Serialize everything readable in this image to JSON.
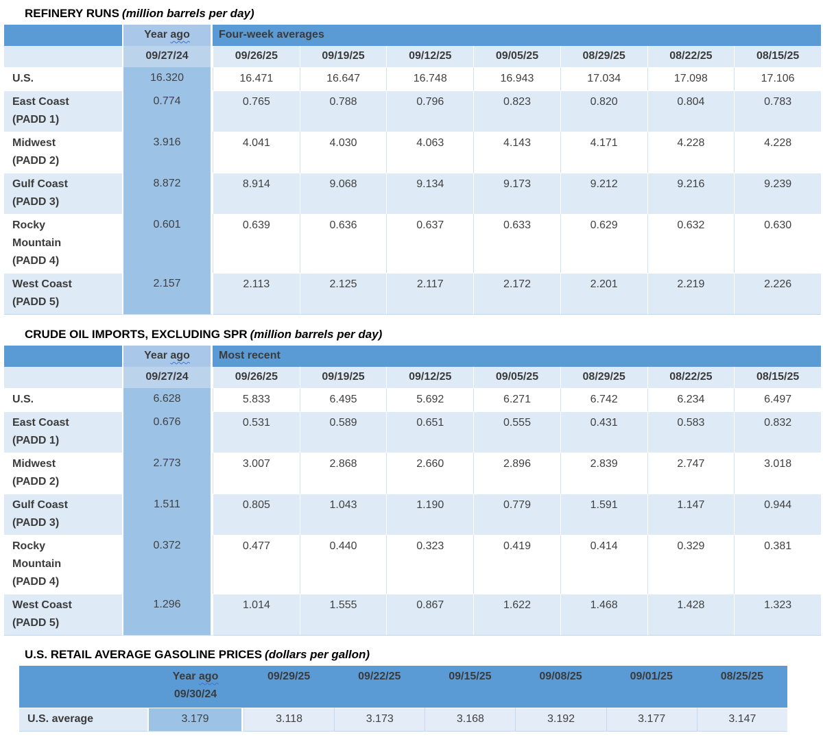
{
  "colors": {
    "header_blue": "#5B9BD5",
    "year_ago_header_blue": "#A9C8E9",
    "year_ago_column_blue": "#9CC3E6",
    "row_tint_blue": "#DEEAF6",
    "flat_value_tint": "#E4EDF7",
    "text_dark": "#404040",
    "squiggle_blue": "#4472C4"
  },
  "tables": [
    {
      "name": "refinery-runs",
      "style": "grouped",
      "title": "REFINERY RUNS",
      "unit": "(million barrels per day)",
      "header": {
        "year_ago_label": "Year ago",
        "period_label": "Four-week averages",
        "year_ago_date": "09/27/24",
        "dates": [
          "09/26/25",
          "09/19/25",
          "09/12/25",
          "09/05/25",
          "08/29/25",
          "08/22/25",
          "08/15/25"
        ]
      },
      "rows": [
        {
          "label": "U.S.",
          "label_lines": [
            "U.S."
          ],
          "year_ago": "16.320",
          "values": [
            "16.471",
            "16.647",
            "16.748",
            "16.943",
            "17.034",
            "17.098",
            "17.106"
          ]
        },
        {
          "label": "East Coast (PADD 1)",
          "label_lines": [
            "East Coast",
            "(PADD 1)"
          ],
          "year_ago": "0.774",
          "values": [
            "0.765",
            "0.788",
            "0.796",
            "0.823",
            "0.820",
            "0.804",
            "0.783"
          ]
        },
        {
          "label": "Midwest (PADD 2)",
          "label_lines": [
            "Midwest",
            "(PADD 2)"
          ],
          "year_ago": "3.916",
          "values": [
            "4.041",
            "4.030",
            "4.063",
            "4.143",
            "4.171",
            "4.228",
            "4.228"
          ]
        },
        {
          "label": "Gulf Coast (PADD 3)",
          "label_lines": [
            "Gulf Coast",
            "(PADD 3)"
          ],
          "year_ago": "8.872",
          "values": [
            "8.914",
            "9.068",
            "9.134",
            "9.173",
            "9.212",
            "9.216",
            "9.239"
          ]
        },
        {
          "label": "Rocky Mountain (PADD 4)",
          "label_lines": [
            "Rocky",
            "Mountain",
            "(PADD 4)"
          ],
          "year_ago": "0.601",
          "values": [
            "0.639",
            "0.636",
            "0.637",
            "0.633",
            "0.629",
            "0.632",
            "0.630"
          ]
        },
        {
          "label": "West Coast (PADD 5)",
          "label_lines": [
            "West Coast",
            "(PADD 5)"
          ],
          "year_ago": "2.157",
          "values": [
            "2.113",
            "2.125",
            "2.117",
            "2.172",
            "2.201",
            "2.219",
            "2.226"
          ]
        }
      ]
    },
    {
      "name": "crude-oil-imports",
      "style": "grouped",
      "title": "CRUDE OIL IMPORTS, EXCLUDING SPR",
      "unit": "(million barrels per day)",
      "header": {
        "year_ago_label": "Year ago",
        "period_label": "Most recent",
        "year_ago_date": "09/27/24",
        "dates": [
          "09/26/25",
          "09/19/25",
          "09/12/25",
          "09/05/25",
          "08/29/25",
          "08/22/25",
          "08/15/25"
        ]
      },
      "rows": [
        {
          "label": "U.S.",
          "label_lines": [
            "U.S."
          ],
          "year_ago": "6.628",
          "values": [
            "5.833",
            "6.495",
            "5.692",
            "6.271",
            "6.742",
            "6.234",
            "6.497"
          ]
        },
        {
          "label": "East Coast (PADD 1)",
          "label_lines": [
            "East Coast",
            "(PADD 1)"
          ],
          "year_ago": "0.676",
          "values": [
            "0.531",
            "0.589",
            "0.651",
            "0.555",
            "0.431",
            "0.583",
            "0.832"
          ]
        },
        {
          "label": "Midwest (PADD 2)",
          "label_lines": [
            "Midwest",
            "(PADD 2)"
          ],
          "year_ago": "2.773",
          "values": [
            "3.007",
            "2.868",
            "2.660",
            "2.896",
            "2.839",
            "2.747",
            "3.018"
          ]
        },
        {
          "label": "Gulf Coast (PADD 3)",
          "label_lines": [
            "Gulf Coast",
            "(PADD 3)"
          ],
          "year_ago": "1.511",
          "values": [
            "0.805",
            "1.043",
            "1.190",
            "0.779",
            "1.591",
            "1.147",
            "0.944"
          ]
        },
        {
          "label": "Rocky Mountain (PADD 4)",
          "label_lines": [
            "Rocky",
            "Mountain",
            "(PADD 4)"
          ],
          "year_ago": "0.372",
          "values": [
            "0.477",
            "0.440",
            "0.323",
            "0.419",
            "0.414",
            "0.329",
            "0.381"
          ]
        },
        {
          "label": "West Coast (PADD 5)",
          "label_lines": [
            "West Coast",
            "(PADD 5)"
          ],
          "year_ago": "1.296",
          "values": [
            "1.014",
            "1.555",
            "0.867",
            "1.622",
            "1.468",
            "1.428",
            "1.323"
          ]
        }
      ]
    },
    {
      "name": "retail-gasoline-prices",
      "style": "flat",
      "title": "U.S. RETAIL AVERAGE GASOLINE PRICES",
      "unit": "(dollars per gallon)",
      "header": {
        "year_ago_label": "Year ago",
        "year_ago_date": "09/30/24",
        "dates": [
          "09/29/25",
          "09/22/25",
          "09/15/25",
          "09/08/25",
          "09/01/25",
          "08/25/25"
        ]
      },
      "rows": [
        {
          "label": "U.S. average",
          "label_lines": [
            "U.S. average"
          ],
          "year_ago": "3.179",
          "values": [
            "3.118",
            "3.173",
            "3.168",
            "3.192",
            "3.177",
            "3.147"
          ]
        }
      ]
    }
  ]
}
